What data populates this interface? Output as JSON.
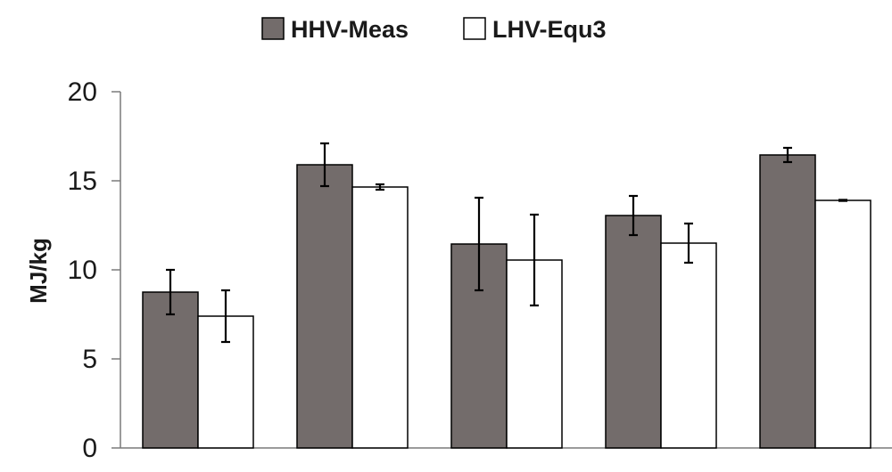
{
  "chart_data": {
    "type": "bar",
    "title": "",
    "xlabel": "",
    "ylabel": "MJ/kg",
    "ylim": [
      0,
      20
    ],
    "yticks": [
      0,
      5,
      10,
      15,
      20
    ],
    "grid": false,
    "legend_position": "top-center",
    "categories": [
      "",
      "",
      "",
      "",
      ""
    ],
    "series": [
      {
        "name": "HHV-Meas",
        "color": "#736c6b",
        "values": [
          8.75,
          15.9,
          11.45,
          13.05,
          16.45
        ],
        "errors": [
          1.25,
          1.2,
          2.6,
          1.1,
          0.4
        ]
      },
      {
        "name": "LHV-Equ3",
        "color": "#ffffff",
        "values": [
          7.4,
          14.65,
          10.55,
          11.5,
          13.9
        ],
        "errors": [
          1.45,
          0.15,
          2.55,
          1.1,
          0.03
        ]
      }
    ]
  }
}
